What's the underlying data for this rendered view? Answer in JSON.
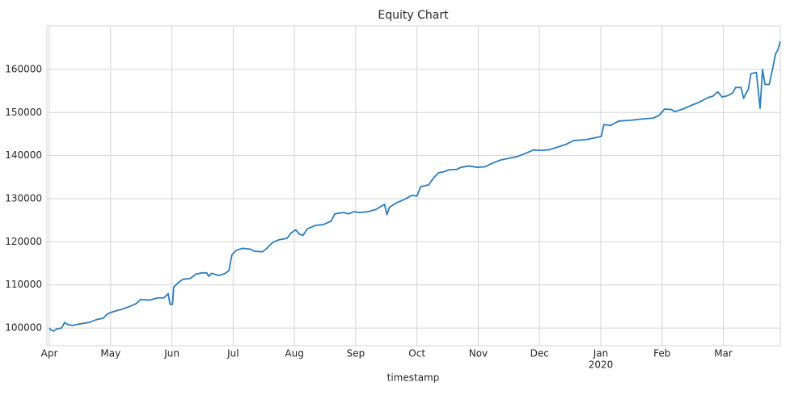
{
  "chart_data": {
    "type": "line",
    "title": "Equity Chart",
    "x_label": "timestamp",
    "x": [
      0,
      0.03,
      0.07,
      0.12,
      0.2,
      0.25,
      0.3,
      0.38,
      0.51,
      0.65,
      0.78,
      0.88,
      0.95,
      1.04,
      1.17,
      1.31,
      1.41,
      1.49,
      1.64,
      1.77,
      1.87,
      1.94,
      1.97,
      2.01,
      2.03,
      2.1,
      2.18,
      2.3,
      2.39,
      2.49,
      2.57,
      2.6,
      2.65,
      2.76,
      2.86,
      2.93,
      2.98,
      3.05,
      3.15,
      3.28,
      3.35,
      3.48,
      3.55,
      3.64,
      3.75,
      3.88,
      3.94,
      4.02,
      4.08,
      4.14,
      4.21,
      4.34,
      4.47,
      4.6,
      4.66,
      4.8,
      4.89,
      4.97,
      5.07,
      5.2,
      5.33,
      5.47,
      5.51,
      5.55,
      5.66,
      5.79,
      5.92,
      6.0,
      6.06,
      6.19,
      6.27,
      6.35,
      6.45,
      6.52,
      6.65,
      6.72,
      6.85,
      6.98,
      7.11,
      7.24,
      7.37,
      7.51,
      7.64,
      7.77,
      7.9,
      8.03,
      8.17,
      8.3,
      8.43,
      8.56,
      8.76,
      8.96,
      9.01,
      9.05,
      9.16,
      9.29,
      9.49,
      9.68,
      9.85,
      9.95,
      10.04,
      10.15,
      10.21,
      10.34,
      10.47,
      10.61,
      10.74,
      10.83,
      10.91,
      10.98,
      11.07,
      11.15,
      11.2,
      11.29,
      11.33,
      11.41,
      11.45,
      11.54,
      11.6,
      11.64,
      11.68,
      11.75,
      11.81,
      11.85,
      11.89,
      11.93
    ],
    "series": [
      {
        "name": "equity",
        "color": "#2e7ebc",
        "values": [
          100000,
          99500,
          99300,
          99800,
          100000,
          101300,
          100800,
          100600,
          101000,
          101300,
          102000,
          102300,
          103300,
          103800,
          104300,
          105000,
          105600,
          106600,
          106500,
          107000,
          107000,
          108000,
          105500,
          105500,
          109500,
          110500,
          111300,
          111500,
          112500,
          112800,
          112800,
          112000,
          112700,
          112200,
          112600,
          113300,
          117000,
          118000,
          118500,
          118300,
          117800,
          117700,
          118500,
          119800,
          120500,
          120800,
          122000,
          122800,
          121800,
          121500,
          123000,
          123800,
          124000,
          124800,
          126500,
          126800,
          126500,
          127000,
          126800,
          127000,
          127500,
          128700,
          126300,
          128000,
          129000,
          129800,
          130800,
          130600,
          132800,
          133200,
          134800,
          136000,
          136300,
          136700,
          136800,
          137300,
          137600,
          137300,
          137400,
          138300,
          139000,
          139400,
          139800,
          140500,
          141300,
          141200,
          141400,
          142000,
          142600,
          143500,
          143700,
          144300,
          144500,
          147200,
          147000,
          148000,
          148200,
          148500,
          148700,
          149300,
          150800,
          150700,
          150200,
          150800,
          151600,
          152400,
          153400,
          153800,
          154800,
          153600,
          153900,
          154500,
          155800,
          155800,
          153300,
          155500,
          159000,
          159300,
          151000,
          160000,
          156500,
          156500,
          160500,
          163500,
          164500,
          166500
        ]
      }
    ],
    "xlim": [
      -0.04,
      11.93
    ],
    "xticks": [
      {
        "value": 0,
        "label": "Apr"
      },
      {
        "value": 1,
        "label": "May"
      },
      {
        "value": 2,
        "label": "Jun"
      },
      {
        "value": 3,
        "label": "Jul"
      },
      {
        "value": 4,
        "label": "Aug"
      },
      {
        "value": 5,
        "label": "Sep"
      },
      {
        "value": 6,
        "label": "Oct"
      },
      {
        "value": 7,
        "label": "Nov"
      },
      {
        "value": 8,
        "label": "Dec"
      },
      {
        "value": 9,
        "label": "Jan"
      },
      {
        "value": 10,
        "label": "Feb"
      },
      {
        "value": 11,
        "label": "Mar"
      }
    ],
    "annotations": [
      {
        "text": "2020",
        "x": 9
      }
    ],
    "ylim": [
      95900,
      170100
    ],
    "yticks": [
      100000,
      110000,
      120000,
      130000,
      140000,
      150000,
      160000
    ],
    "grid": true
  }
}
